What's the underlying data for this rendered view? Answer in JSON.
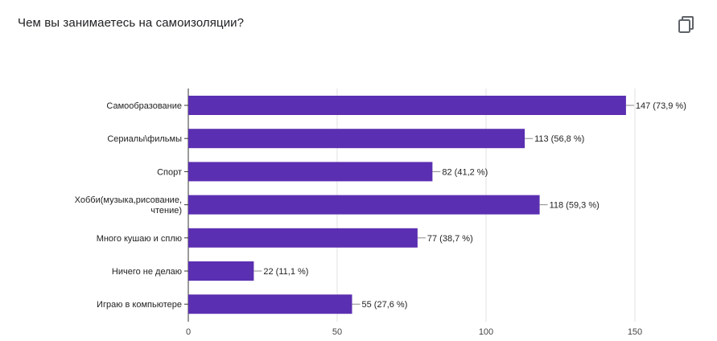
{
  "question": {
    "title": "Чем вы занимаетесь на самоизоляции?"
  },
  "toolbar": {
    "copy_icon": "copy-icon"
  },
  "colors": {
    "bar": "#5b2fb1",
    "axis": "#333333",
    "grid": "#e0e0e0"
  },
  "chart_data": {
    "type": "bar",
    "orientation": "horizontal",
    "categories": [
      [
        "Самообразование"
      ],
      [
        "Сериалы\\фильмы"
      ],
      [
        "Спорт"
      ],
      [
        "Хобби(музыка,рисование,",
        "чтение)"
      ],
      [
        "Много кушаю и сплю"
      ],
      [
        "Ничего не делаю"
      ],
      [
        "Играю в компьютере"
      ]
    ],
    "values": [
      147,
      113,
      82,
      118,
      77,
      22,
      55
    ],
    "value_labels": [
      "147 (73,9 %)",
      "113 (56,8 %)",
      "82 (41,2 %)",
      "118 (59,3 %)",
      "77 (38,7 %)",
      "22 (11,1 %)",
      "55 (27,6 %)"
    ],
    "xlim": [
      0,
      150
    ],
    "xticks": [
      0,
      50,
      100,
      150
    ],
    "xtick_labels": [
      "0",
      "50",
      "100",
      "150"
    ],
    "grid": true
  }
}
